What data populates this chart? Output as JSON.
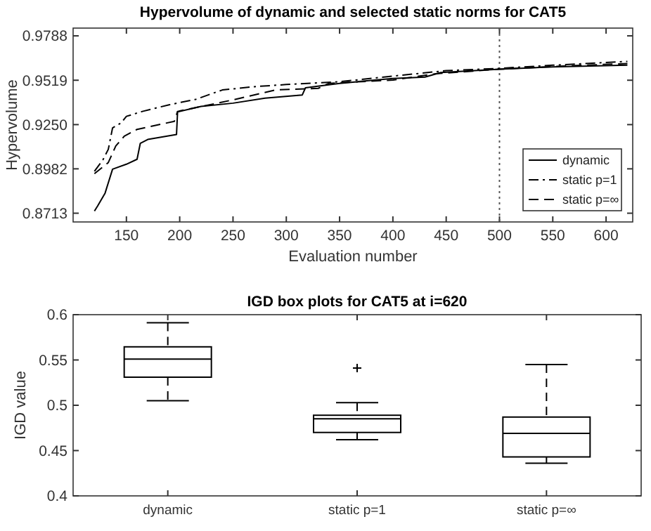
{
  "chart_data": [
    {
      "type": "line",
      "title": "Hypervolume of dynamic and selected static norms for CAT5",
      "xlabel": "Evaluation number",
      "ylabel": "Hypervolume",
      "xlim": [
        100,
        625
      ],
      "xticks": [
        150,
        200,
        250,
        300,
        350,
        400,
        450,
        500,
        550,
        600
      ],
      "ylim": [
        0.866,
        0.9835
      ],
      "yticks": [
        0.8713,
        0.8982,
        {
          "value": 0.925,
          "label": "0.9250"
        },
        0.9519,
        0.9788
      ],
      "legend": "bottom right",
      "ref_lines": [
        {
          "axis": "x",
          "value": 500,
          "line_style": "dotted"
        }
      ],
      "series": [
        {
          "name": "dynamic",
          "color": "#000000",
          "line_style": "solid",
          "x": [
            120,
            123,
            130,
            137,
            150,
            160,
            163,
            170,
            197,
            198,
            220,
            250,
            280,
            315,
            318,
            350,
            400,
            430,
            445,
            500,
            550,
            620
          ],
          "values": [
            0.8726,
            0.8757,
            0.8835,
            0.898,
            0.901,
            0.904,
            0.9136,
            0.916,
            0.919,
            0.9327,
            0.936,
            0.938,
            0.941,
            0.943,
            0.9473,
            0.95,
            0.953,
            0.9538,
            0.9566,
            0.9586,
            0.96,
            0.961
          ]
        },
        {
          "name": "static p=1",
          "color": "#000000",
          "line_style": "dashdot",
          "x": [
            120,
            128,
            133,
            137,
            145,
            150,
            165,
            190,
            215,
            240,
            270,
            300,
            350,
            400,
            450,
            500,
            550,
            620
          ],
          "values": [
            0.8967,
            0.9037,
            0.91,
            0.923,
            0.926,
            0.93,
            0.933,
            0.937,
            0.9403,
            0.946,
            0.948,
            0.9493,
            0.951,
            0.9544,
            0.9577,
            0.9591,
            0.961,
            0.9633
          ]
        },
        {
          "name": "static p=∞",
          "color": "#000000",
          "line_style": "dashed",
          "x": [
            120,
            133,
            140,
            148,
            160,
            195,
            198,
            250,
            290,
            330,
            340,
            400,
            440,
            500,
            560,
            620
          ],
          "values": [
            0.8953,
            0.902,
            0.912,
            0.918,
            0.9221,
            0.927,
            0.933,
            0.94,
            0.946,
            0.947,
            0.95,
            0.952,
            0.9558,
            0.9586,
            0.9605,
            0.962
          ]
        }
      ]
    },
    {
      "type": "box",
      "title": "IGD box plots for CAT5 at i=620",
      "ylabel": "IGD value",
      "categories": [
        "dynamic",
        "static p=1",
        "static p=∞"
      ],
      "ylim": [
        0.4,
        0.6
      ],
      "yticks": [
        0.4,
        0.45,
        0.5,
        0.55,
        0.6
      ],
      "color": "#000000",
      "boxes": [
        {
          "low": 0.505,
          "q1": 0.531,
          "median": 0.551,
          "q3": 0.5645,
          "high": 0.591
        },
        {
          "low": 0.462,
          "q1": 0.47,
          "median": 0.485,
          "q3": 0.489,
          "high": 0.503,
          "outliers": [
            0.541
          ]
        },
        {
          "low": 0.436,
          "q1": 0.443,
          "median": 0.469,
          "q3": 0.487,
          "high": 0.545
        }
      ]
    }
  ]
}
